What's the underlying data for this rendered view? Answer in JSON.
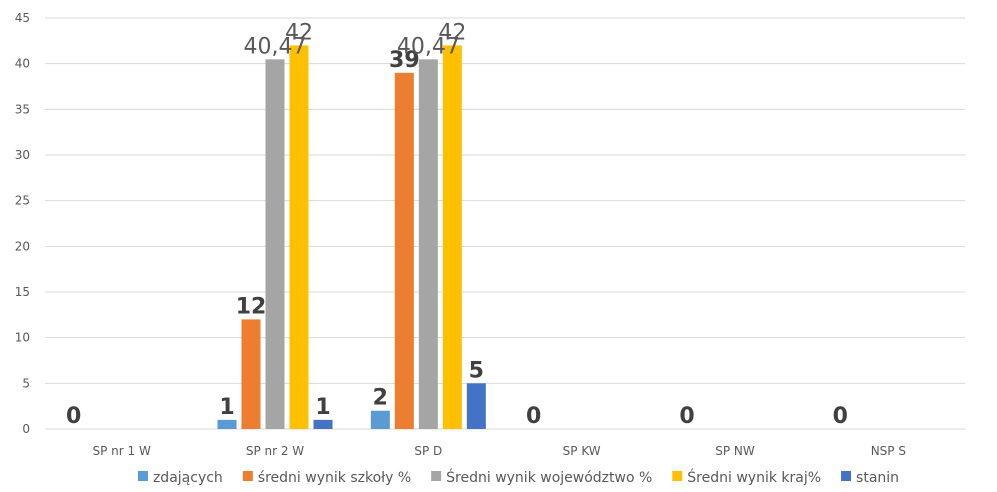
{
  "chart_data": {
    "type": "bar",
    "categories": [
      "SP nr 1 W",
      "SP nr 2 W",
      "SP D",
      "SP KW",
      "SP NW",
      "NSP S"
    ],
    "series": [
      {
        "name": "zdających",
        "color": "#5b9bd5",
        "values": [
          0,
          1,
          2,
          0,
          0,
          0
        ]
      },
      {
        "name": "średni wynik szkoły %",
        "color": "#ed7d31",
        "values": [
          0,
          12,
          39,
          0,
          0,
          0
        ]
      },
      {
        "name": "Średni wynik województwo %",
        "color": "#a5a5a5",
        "values": [
          0,
          40.47,
          40.47,
          0,
          0,
          0
        ]
      },
      {
        "name": "Średni wynik kraj%",
        "color": "#ffc000",
        "values": [
          0,
          42,
          42,
          0,
          0,
          0
        ]
      },
      {
        "name": "stanin",
        "color": "#4472c4",
        "values": [
          0,
          1,
          5,
          0,
          0,
          0
        ]
      }
    ],
    "value_labels": [
      {
        "category": 0,
        "series": 0,
        "text": "0",
        "style": "bold"
      },
      {
        "category": 1,
        "series": 0,
        "text": "1",
        "style": "bold"
      },
      {
        "category": 1,
        "series": 1,
        "text": "12",
        "style": "bold"
      },
      {
        "category": 1,
        "series": 2,
        "text": "40,47",
        "style": "light"
      },
      {
        "category": 1,
        "series": 3,
        "text": "42",
        "style": "light"
      },
      {
        "category": 1,
        "series": 4,
        "text": "1",
        "style": "bold"
      },
      {
        "category": 2,
        "series": 0,
        "text": "2",
        "style": "bold"
      },
      {
        "category": 2,
        "series": 1,
        "text": "39",
        "style": "bold"
      },
      {
        "category": 2,
        "series": 2,
        "text": "40,47",
        "style": "light"
      },
      {
        "category": 2,
        "series": 3,
        "text": "42",
        "style": "light"
      },
      {
        "category": 2,
        "series": 4,
        "text": "5",
        "style": "bold"
      },
      {
        "category": 3,
        "series": 0,
        "text": "0",
        "style": "bold"
      },
      {
        "category": 4,
        "series": 0,
        "text": "0",
        "style": "bold"
      },
      {
        "category": 5,
        "series": 0,
        "text": "0",
        "style": "bold"
      }
    ],
    "yticks": [
      "0",
      "5",
      "10",
      "15",
      "20",
      "25",
      "30",
      "35",
      "40",
      "45"
    ],
    "ylim": [
      0,
      45
    ],
    "grid": true,
    "legend_position": "bottom"
  }
}
